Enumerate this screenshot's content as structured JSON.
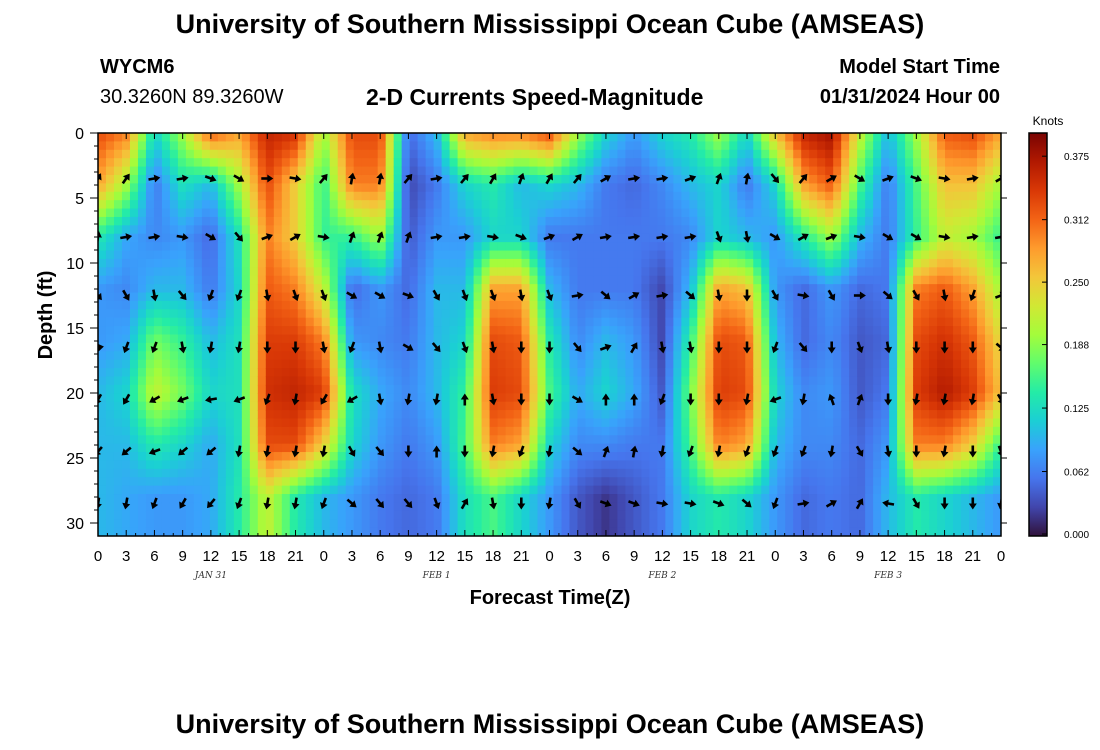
{
  "header": {
    "title": "University of Southern Mississippi Ocean Cube (AMSEAS)",
    "station": "WYCM6",
    "coordinates": "30.3260N  89.3260W",
    "subtitle": "2-D Currents Speed-Magnitude",
    "model_start_label": "Model Start Time",
    "model_start_value": "01/31/2024 Hour 00"
  },
  "footer": {
    "title": "University of Southern Mississippi Ocean Cube (AMSEAS)"
  },
  "chart_data": {
    "type": "heatmap",
    "title": "2-D Currents Speed-Magnitude",
    "xlabel": "Forecast Time(Z)",
    "ylabel": "Depth (ft)",
    "x_tick_labels": [
      "0",
      "3",
      "6",
      "9",
      "12",
      "15",
      "18",
      "21",
      "0",
      "3",
      "6",
      "9",
      "12",
      "15",
      "18",
      "21",
      "0",
      "3",
      "6",
      "9",
      "12",
      "15",
      "18",
      "21",
      "0",
      "3",
      "6",
      "9",
      "12",
      "15",
      "18",
      "21",
      "0"
    ],
    "x_range_hours": [
      0,
      96
    ],
    "date_labels": [
      {
        "hour": 12,
        "text": "JAN 31"
      },
      {
        "hour": 36,
        "text": "FEB 1"
      },
      {
        "hour": 60,
        "text": "FEB 2"
      },
      {
        "hour": 84,
        "text": "FEB 3"
      }
    ],
    "y_ticks": [
      0,
      5,
      10,
      15,
      20,
      25,
      30
    ],
    "y_range_ft": [
      0,
      31
    ],
    "y_inverted": true,
    "colorbar": {
      "label": "Knots",
      "range": [
        0,
        0.4
      ],
      "ticks": [
        "0.000",
        "0.062",
        "0.125",
        "0.188",
        "0.250",
        "0.312",
        "0.375"
      ],
      "colors": [
        "#30123b",
        "#4145ab",
        "#4675ed",
        "#39a2fc",
        "#1bcfd4",
        "#24eca6",
        "#61fc6c",
        "#a4fc3b",
        "#d1e834",
        "#f3c63a",
        "#fe9b2d",
        "#f36315",
        "#d93806",
        "#b11901",
        "#7a0403"
      ]
    },
    "speed_knots_by_depth": {
      "depths_ft": [
        0,
        4,
        8,
        12,
        16,
        20,
        24,
        28
      ],
      "columns": [
        {
          "hour": 0,
          "values": [
            0.33,
            0.28,
            0.14,
            0.08,
            0.08,
            0.1,
            0.1,
            0.1
          ]
        },
        {
          "hour": 3,
          "values": [
            0.3,
            0.2,
            0.09,
            0.07,
            0.09,
            0.12,
            0.1,
            0.09
          ]
        },
        {
          "hour": 6,
          "values": [
            0.12,
            0.06,
            0.07,
            0.1,
            0.18,
            0.22,
            0.14,
            0.08
          ]
        },
        {
          "hour": 9,
          "values": [
            0.2,
            0.13,
            0.08,
            0.1,
            0.15,
            0.18,
            0.12,
            0.08
          ]
        },
        {
          "hour": 12,
          "values": [
            0.32,
            0.1,
            0.05,
            0.06,
            0.1,
            0.12,
            0.09,
            0.09
          ]
        },
        {
          "hour": 15,
          "values": [
            0.28,
            0.2,
            0.13,
            0.12,
            0.13,
            0.13,
            0.13,
            0.14
          ]
        },
        {
          "hour": 18,
          "values": [
            0.36,
            0.33,
            0.3,
            0.32,
            0.34,
            0.35,
            0.33,
            0.22
          ]
        },
        {
          "hour": 21,
          "values": [
            0.35,
            0.25,
            0.25,
            0.3,
            0.34,
            0.36,
            0.33,
            0.14
          ]
        },
        {
          "hour": 24,
          "values": [
            0.2,
            0.15,
            0.15,
            0.22,
            0.3,
            0.34,
            0.25,
            0.1
          ]
        },
        {
          "hour": 27,
          "values": [
            0.33,
            0.3,
            0.15,
            0.05,
            0.08,
            0.13,
            0.12,
            0.08
          ]
        },
        {
          "hour": 30,
          "values": [
            0.33,
            0.3,
            0.2,
            0.08,
            0.07,
            0.09,
            0.08,
            0.06
          ]
        },
        {
          "hour": 33,
          "values": [
            0.05,
            0.03,
            0.04,
            0.05,
            0.06,
            0.07,
            0.06,
            0.05
          ]
        },
        {
          "hour": 36,
          "values": [
            0.1,
            0.06,
            0.08,
            0.1,
            0.1,
            0.1,
            0.08,
            0.06
          ]
        },
        {
          "hour": 39,
          "values": [
            0.28,
            0.12,
            0.08,
            0.1,
            0.12,
            0.15,
            0.16,
            0.13
          ]
        },
        {
          "hour": 42,
          "values": [
            0.3,
            0.14,
            0.12,
            0.28,
            0.33,
            0.34,
            0.3,
            0.16
          ]
        },
        {
          "hour": 45,
          "values": [
            0.3,
            0.1,
            0.12,
            0.28,
            0.32,
            0.33,
            0.28,
            0.12
          ]
        },
        {
          "hour": 48,
          "values": [
            0.33,
            0.12,
            0.06,
            0.1,
            0.14,
            0.16,
            0.12,
            0.08
          ]
        },
        {
          "hour": 51,
          "values": [
            0.2,
            0.1,
            0.06,
            0.06,
            0.07,
            0.09,
            0.07,
            0.04
          ]
        },
        {
          "hour": 54,
          "values": [
            0.12,
            0.06,
            0.06,
            0.06,
            0.1,
            0.12,
            0.07,
            0.02
          ]
        },
        {
          "hour": 57,
          "values": [
            0.08,
            0.05,
            0.06,
            0.06,
            0.08,
            0.09,
            0.06,
            0.04
          ]
        },
        {
          "hour": 60,
          "values": [
            0.12,
            0.07,
            0.06,
            0.03,
            0.03,
            0.04,
            0.06,
            0.06
          ]
        },
        {
          "hour": 63,
          "values": [
            0.14,
            0.1,
            0.07,
            0.1,
            0.15,
            0.18,
            0.16,
            0.12
          ]
        },
        {
          "hour": 66,
          "values": [
            0.2,
            0.12,
            0.12,
            0.28,
            0.33,
            0.34,
            0.3,
            0.14
          ]
        },
        {
          "hour": 69,
          "values": [
            0.12,
            0.06,
            0.1,
            0.26,
            0.32,
            0.33,
            0.28,
            0.12
          ]
        },
        {
          "hour": 72,
          "values": [
            0.26,
            0.12,
            0.08,
            0.08,
            0.1,
            0.12,
            0.1,
            0.08
          ]
        },
        {
          "hour": 75,
          "values": [
            0.36,
            0.28,
            0.14,
            0.05,
            0.05,
            0.07,
            0.07,
            0.05
          ]
        },
        {
          "hour": 78,
          "values": [
            0.38,
            0.32,
            0.2,
            0.08,
            0.07,
            0.08,
            0.07,
            0.06
          ]
        },
        {
          "hour": 81,
          "values": [
            0.22,
            0.16,
            0.1,
            0.05,
            0.04,
            0.04,
            0.05,
            0.05
          ]
        },
        {
          "hour": 84,
          "values": [
            0.1,
            0.06,
            0.06,
            0.06,
            0.05,
            0.06,
            0.08,
            0.1
          ]
        },
        {
          "hour": 87,
          "values": [
            0.2,
            0.16,
            0.15,
            0.3,
            0.33,
            0.34,
            0.3,
            0.14
          ]
        },
        {
          "hour": 90,
          "values": [
            0.32,
            0.26,
            0.22,
            0.32,
            0.35,
            0.37,
            0.3,
            0.12
          ]
        },
        {
          "hour": 93,
          "values": [
            0.33,
            0.26,
            0.2,
            0.28,
            0.32,
            0.34,
            0.25,
            0.1
          ]
        },
        {
          "hour": 96,
          "values": [
            0.28,
            0.2,
            0.15,
            0.2,
            0.24,
            0.26,
            0.15,
            0.08
          ]
        }
      ]
    },
    "arrow_depths_ft": [
      3.5,
      8,
      12.5,
      16.5,
      20.5,
      24.5,
      28.5
    ],
    "arrow_hours": [
      0,
      3,
      6,
      9,
      12,
      15,
      18,
      21,
      24,
      27,
      30,
      33,
      36,
      39,
      42,
      45,
      48,
      51,
      54,
      57,
      60,
      63,
      66,
      69,
      72,
      75,
      78,
      81,
      84,
      87,
      90,
      93,
      96
    ],
    "arrow_directions_deg": [
      [
        30,
        35,
        80,
        80,
        110,
        120,
        90,
        100,
        40,
        10,
        10,
        40,
        80,
        40,
        30,
        20,
        30,
        40,
        60,
        80,
        80,
        70,
        20,
        10,
        140,
        40,
        60,
        120,
        70,
        110,
        100,
        80,
        60
      ],
      [
        10,
        80,
        80,
        100,
        120,
        140,
        70,
        60,
        100,
        20,
        20,
        20,
        80,
        80,
        100,
        110,
        70,
        60,
        80,
        80,
        80,
        80,
        160,
        170,
        120,
        60,
        70,
        100,
        120,
        120,
        100,
        80,
        80
      ],
      [
        140,
        150,
        170,
        140,
        200,
        200,
        170,
        160,
        160,
        120,
        120,
        110,
        150,
        160,
        160,
        170,
        160,
        80,
        130,
        60,
        80,
        130,
        170,
        180,
        150,
        100,
        150,
        90,
        130,
        150,
        170,
        200,
        70
      ],
      [
        80,
        200,
        200,
        170,
        190,
        190,
        180,
        180,
        170,
        200,
        170,
        120,
        140,
        160,
        170,
        180,
        180,
        140,
        70,
        30,
        170,
        170,
        180,
        180,
        200,
        140,
        180,
        160,
        170,
        180,
        180,
        180,
        130
      ],
      [
        210,
        210,
        240,
        250,
        260,
        250,
        200,
        190,
        210,
        240,
        170,
        190,
        190,
        0,
        170,
        180,
        180,
        120,
        0,
        0,
        200,
        180,
        180,
        190,
        250,
        190,
        340,
        20,
        180,
        190,
        190,
        190,
        150
      ],
      [
        220,
        230,
        250,
        230,
        230,
        190,
        190,
        190,
        190,
        150,
        140,
        180,
        0,
        180,
        190,
        200,
        190,
        130,
        20,
        10,
        190,
        200,
        190,
        200,
        200,
        200,
        190,
        150,
        170,
        180,
        190,
        180,
        160
      ],
      [
        190,
        190,
        200,
        210,
        220,
        200,
        190,
        190,
        200,
        130,
        140,
        140,
        160,
        30,
        170,
        180,
        190,
        150,
        110,
        110,
        100,
        100,
        110,
        130,
        200,
        80,
        60,
        30,
        280,
        150,
        180,
        180,
        190
      ]
    ]
  }
}
